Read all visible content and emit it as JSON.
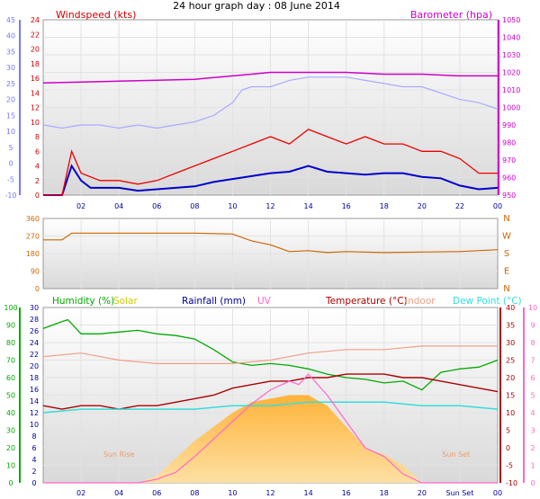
{
  "title": "24 hour graph day : 08 June 2014",
  "x_hours": [
    "02",
    "04",
    "06",
    "08",
    "10",
    "12",
    "14",
    "16",
    "18",
    "20",
    "22",
    "00"
  ],
  "x_labels_bottom": [
    "02",
    "04",
    "06",
    "08",
    "10",
    "12",
    "14",
    "16",
    "18",
    "20",
    "Sun Set",
    "00"
  ],
  "colors": {
    "wind_avg": "#0000cc",
    "wind_gust": "#ee0000",
    "baro": "#cc00cc",
    "wind_left_axis": "#7777ff",
    "direction": "#cc6600",
    "humidity": "#00aa00",
    "solar": "#ffb43c",
    "rainfall": "#000099",
    "uv": "#ff66cc",
    "temperature": "#aa0000",
    "indoor": "#f0a08a",
    "dewpoint": "#33dddd"
  },
  "chart_data": [
    {
      "type": "line",
      "name": "wind-baro",
      "title": "",
      "left_axis": {
        "label": "Windspeed (kts)",
        "ticks": [
          "24",
          "22",
          "20",
          "18",
          "16",
          "14",
          "12",
          "10",
          "8",
          "6",
          "4",
          "2",
          "0"
        ],
        "ylim": [
          0,
          24
        ]
      },
      "outer_left_axis": {
        "ticks": [
          "45",
          "40",
          "35",
          "30",
          "25",
          "20",
          "15",
          "10",
          "5",
          "0",
          "-5",
          "-10"
        ],
        "ylim": [
          -10,
          45
        ]
      },
      "right_axis": {
        "label": "Barometer (hpa)",
        "ticks": [
          "1050",
          "1040",
          "1030",
          "1020",
          "1010",
          "1000",
          "990",
          "980",
          "970",
          "960",
          "950"
        ],
        "ylim": [
          950,
          1050
        ]
      },
      "x_range_hours": [
        0,
        24
      ],
      "series": [
        {
          "key": "baro",
          "axis": "right",
          "x": [
            0,
            4,
            8,
            9,
            10,
            11,
            12,
            14,
            16,
            18,
            20,
            22,
            24
          ],
          "y": [
            1014,
            1015,
            1016,
            1017,
            1018,
            1019,
            1020,
            1020,
            1020,
            1019,
            1019,
            1018,
            1018
          ]
        },
        {
          "key": "wind_left",
          "axis": "outer_left",
          "x": [
            0,
            1,
            2,
            3,
            4,
            5,
            6,
            7,
            8,
            9,
            10,
            10.5,
            11,
            12,
            13,
            14,
            15,
            16,
            17,
            18,
            19,
            20,
            21,
            22,
            23,
            24
          ],
          "y": [
            12,
            11,
            12,
            12,
            11,
            12,
            11,
            12,
            13,
            15,
            19,
            23,
            24,
            24,
            26,
            27,
            27,
            27,
            26,
            25,
            24,
            24,
            22,
            20,
            19,
            17
          ]
        },
        {
          "key": "wind_avg",
          "axis": "left",
          "x": [
            0,
            1,
            1.5,
            2,
            2.5,
            3,
            4,
            5,
            6,
            7,
            8,
            9,
            10,
            11,
            12,
            13,
            14,
            15,
            16,
            17,
            18,
            19,
            20,
            21,
            22,
            23,
            24
          ],
          "y": [
            0,
            0,
            4,
            2,
            1,
            1,
            1,
            0.6,
            0.8,
            1,
            1.2,
            1.8,
            2.2,
            2.6,
            3,
            3.2,
            4,
            3.2,
            3,
            2.8,
            3,
            3,
            2.5,
            2.3,
            1.3,
            0.8,
            1
          ]
        },
        {
          "key": "wind_gust",
          "axis": "left",
          "x": [
            0,
            1,
            1.5,
            2,
            3,
            4,
            5,
            6,
            7,
            8,
            9,
            10,
            11,
            12,
            13,
            14,
            15,
            16,
            17,
            18,
            19,
            20,
            21,
            22,
            23,
            24
          ],
          "y": [
            0,
            0,
            6,
            3,
            2,
            2,
            1.5,
            2,
            3,
            4,
            5,
            6,
            7,
            8,
            7,
            9,
            8,
            7,
            8,
            7,
            7,
            6,
            6,
            5,
            3,
            3
          ]
        }
      ]
    },
    {
      "type": "line",
      "name": "wind-direction",
      "title": "",
      "left_axis": {
        "ticks": [
          "360",
          "270",
          "180",
          "90",
          "0"
        ],
        "ylim": [
          0,
          360
        ]
      },
      "right_axis": {
        "ticks": [
          "N",
          "W",
          "S",
          "E",
          "N"
        ]
      },
      "x_range_hours": [
        0,
        24
      ],
      "series": [
        {
          "key": "direction",
          "x": [
            0,
            1,
            1.5,
            4,
            8,
            10,
            11,
            12,
            13,
            14,
            15,
            16,
            18,
            20,
            22,
            24
          ],
          "y": [
            250,
            250,
            285,
            285,
            285,
            280,
            245,
            225,
            190,
            195,
            185,
            190,
            185,
            188,
            190,
            200
          ]
        }
      ]
    },
    {
      "type": "line",
      "name": "temp-hum-solar",
      "title": "",
      "legend": [
        "Humidity (%)",
        "Solar",
        "Rainfall (mm)",
        "UV",
        "Temperature (°C)",
        "Indoor",
        "Dew Point (°C)"
      ],
      "humidity_axis": {
        "ticks": [
          "100",
          "90",
          "80",
          "70",
          "60",
          "50",
          "40",
          "30",
          "20",
          "10",
          "0"
        ],
        "ylim": [
          0,
          100
        ]
      },
      "celsius_left_axis": {
        "ticks": [
          "30",
          "28",
          "26",
          "24",
          "22",
          "20",
          "18",
          "16",
          "14",
          "12",
          "10",
          "8",
          "6",
          "4",
          "2",
          "0"
        ],
        "ylim": [
          0,
          30
        ]
      },
      "temperature_axis": {
        "ticks": [
          "40",
          "35",
          "30",
          "25",
          "20",
          "15",
          "10",
          "5",
          "0",
          "-5",
          "-10"
        ],
        "ylim": [
          -10,
          40
        ]
      },
      "uv_axis": {
        "ticks": [
          "10",
          "9",
          "8",
          "7",
          "6",
          "5",
          "4",
          "3",
          "2",
          "1",
          "0"
        ],
        "ylim": [
          0,
          10
        ]
      },
      "annotations": [
        "Sun Rise",
        "Sun Set"
      ],
      "x_range_hours": [
        0,
        24
      ],
      "series": [
        {
          "key": "humidity",
          "axis": "humidity",
          "x": [
            0,
            1,
            1.3,
            2,
            3,
            4,
            5,
            6,
            7,
            8,
            9,
            10,
            11,
            12,
            13,
            14,
            15,
            16,
            17,
            18,
            19,
            20,
            21,
            22,
            23,
            24
          ],
          "y": [
            88,
            92,
            93,
            85,
            85,
            86,
            87,
            85,
            84,
            82,
            76,
            69,
            67,
            68,
            67,
            65,
            62,
            60,
            59,
            57,
            58,
            53,
            63,
            65,
            66,
            70
          ]
        },
        {
          "key": "indoor",
          "axis": "temperature",
          "x": [
            0,
            2,
            4,
            6,
            8,
            10,
            12,
            14,
            16,
            18,
            20,
            22,
            24
          ],
          "y": [
            26,
            27,
            25,
            24,
            24,
            24,
            25,
            27,
            28,
            28,
            29,
            29,
            29
          ]
        },
        {
          "key": "temperature",
          "axis": "temperature",
          "x": [
            0,
            1,
            2,
            3,
            4,
            5,
            6,
            7,
            8,
            9,
            10,
            11,
            12,
            13,
            14,
            15,
            16,
            17,
            18,
            19,
            20,
            21,
            22,
            23,
            24
          ],
          "y": [
            12,
            11,
            12,
            12,
            11,
            12,
            12,
            13,
            14,
            15,
            17,
            18,
            19,
            19,
            20,
            20,
            21,
            21,
            21,
            20,
            20,
            19,
            18,
            17,
            16
          ]
        },
        {
          "key": "dewpoint",
          "axis": "temperature",
          "x": [
            0,
            2,
            4,
            6,
            8,
            10,
            12,
            14,
            16,
            18,
            20,
            22,
            24
          ],
          "y": [
            10,
            11,
            11,
            11,
            11,
            12,
            12,
            13,
            13,
            13,
            12,
            12,
            11
          ]
        },
        {
          "key": "uv",
          "axis": "uv",
          "x": [
            0,
            5,
            6,
            7,
            8,
            9,
            10,
            11,
            12,
            13,
            13.5,
            14,
            15,
            16,
            17,
            18,
            19,
            20,
            24
          ],
          "y": [
            0,
            0,
            0.2,
            0.6,
            1.5,
            2.5,
            3.5,
            4.5,
            5.3,
            5.8,
            5.6,
            6.2,
            5,
            3.5,
            2,
            1.5,
            0.5,
            0,
            0
          ]
        },
        {
          "key": "solar",
          "axis": "temperature",
          "x": [
            0,
            5,
            6,
            7,
            8,
            9,
            10,
            11,
            12,
            13,
            14,
            15,
            16,
            17,
            18,
            19,
            20,
            24
          ],
          "y": [
            -10,
            -10,
            -8,
            -3,
            2,
            6,
            10,
            13,
            14,
            15,
            15,
            12,
            6,
            0,
            -2,
            -5,
            -10,
            -10
          ]
        }
      ]
    }
  ]
}
